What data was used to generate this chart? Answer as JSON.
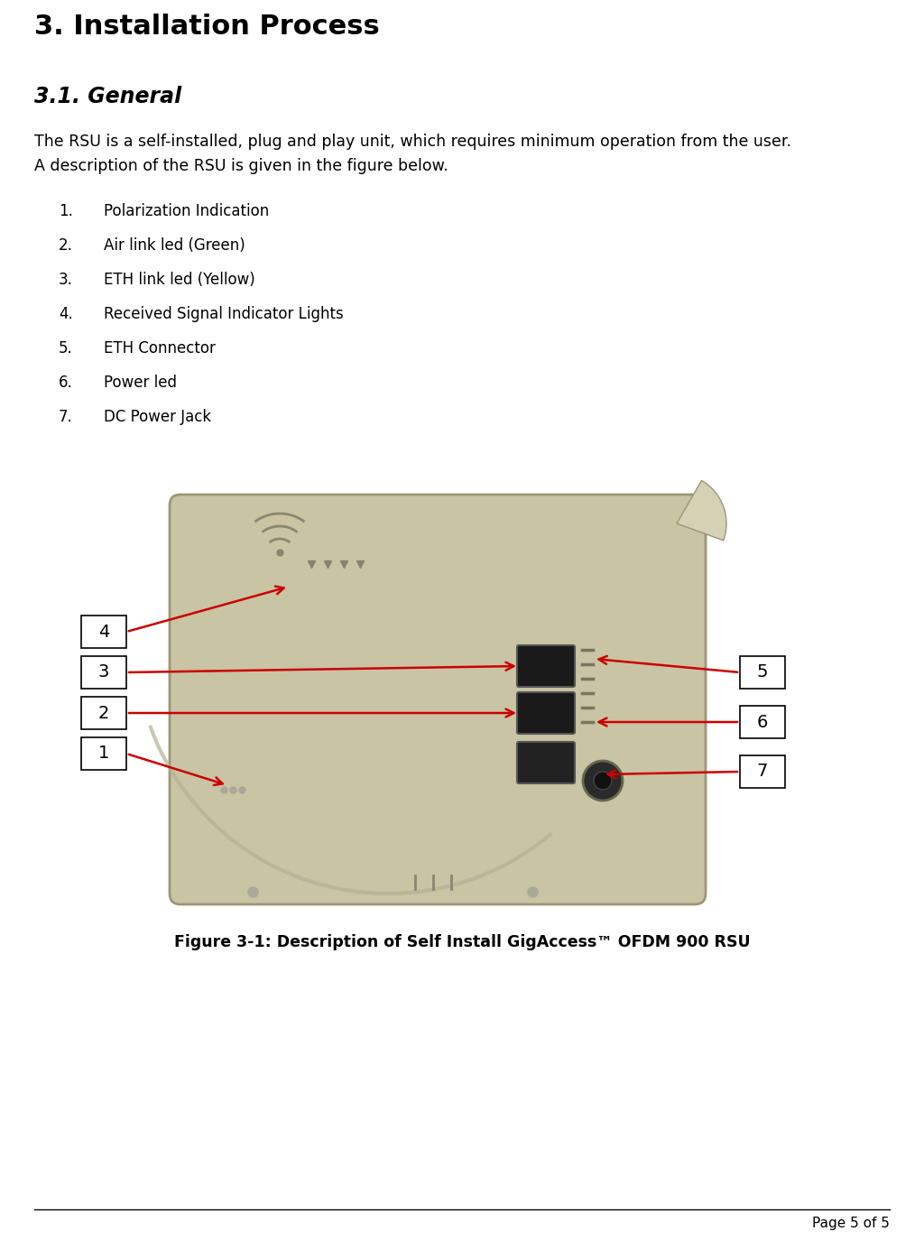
{
  "title": "3. Installation Process",
  "subtitle": "3.1. General",
  "body_text_line1": "The RSU is a self-installed, plug and play unit, which requires minimum operation from the user.",
  "body_text_line2": "A description of the RSU is given in the figure below.",
  "list_items": [
    {
      "num": "1.",
      "text": "Polarization Indication"
    },
    {
      "num": "2.",
      "text": "Air link led (Green)"
    },
    {
      "num": "3.",
      "text": "ETH link led (Yellow)"
    },
    {
      "num": "4.",
      "text": "Received Signal Indicator Lights"
    },
    {
      "num": "5.",
      "text": "ETH Connector"
    },
    {
      "num": "6.",
      "text": "Power led"
    },
    {
      "num": "7.",
      "text": "DC Power Jack"
    }
  ],
  "figure_caption": "Figure 3-1: Description of Self Install GigAccess™ OFDM 900 RSU",
  "page_footer": "Page 5 of 5",
  "bg_color": "#ffffff",
  "text_color": "#000000",
  "red_color": "#cc0000",
  "device_body_color": "#c8c4a4",
  "device_shadow_color": "#b5b196",
  "device_edge_color": "#9a9678"
}
